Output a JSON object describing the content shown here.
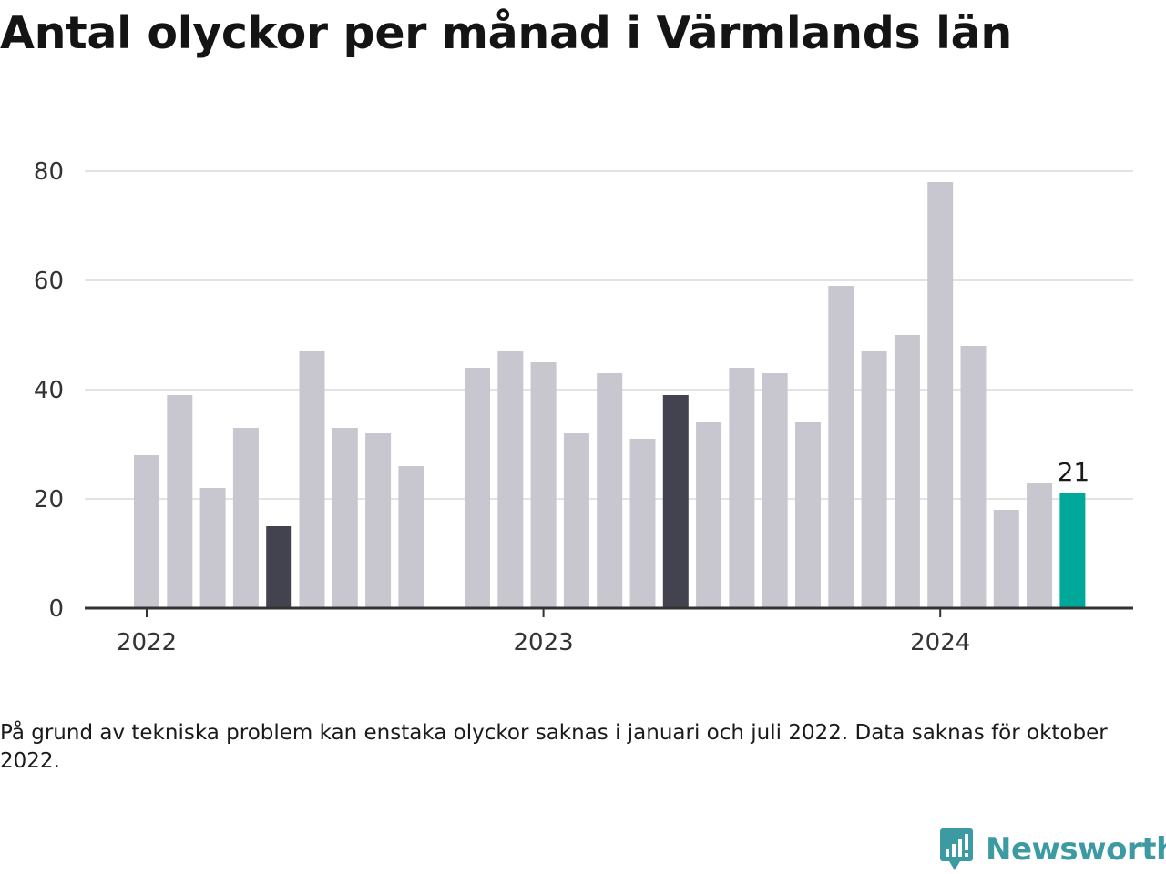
{
  "title": "Antal olyckor per månad i Värmlands län",
  "note": "På grund av tekniska problem kan enstaka olyckor saknas i januari och juli 2022. Data saknas för oktober 2022.",
  "brand": {
    "name": "Newsworthy",
    "icon": "newsworthy-logo-icon",
    "color": "#3c9aa3"
  },
  "colors": {
    "bar": "#c8c7cf",
    "highlight": "#43424f",
    "latest": "#00a89a",
    "grid": "#e3e3e3",
    "axis": "#333333"
  },
  "chart_data": {
    "type": "bar",
    "x": [
      "2022-01",
      "2022-02",
      "2022-03",
      "2022-04",
      "2022-05",
      "2022-06",
      "2022-07",
      "2022-08",
      "2022-09",
      "2022-10",
      "2022-11",
      "2022-12",
      "2023-01",
      "2023-02",
      "2023-03",
      "2023-04",
      "2023-05",
      "2023-06",
      "2023-07",
      "2023-08",
      "2023-09",
      "2023-10",
      "2023-11",
      "2023-12",
      "2024-01",
      "2024-02",
      "2024-03",
      "2024-04",
      "2024-05"
    ],
    "values": [
      28,
      39,
      22,
      33,
      15,
      47,
      33,
      32,
      26,
      null,
      44,
      47,
      45,
      32,
      43,
      31,
      39,
      34,
      44,
      43,
      34,
      59,
      47,
      50,
      78,
      48,
      18,
      23,
      21
    ],
    "highlighted": [
      "2022-05",
      "2023-05"
    ],
    "latest": "2024-05",
    "latest_label": "21",
    "x_tick_labels": [
      {
        "x": "2022-01",
        "label": "2022"
      },
      {
        "x": "2023-01",
        "label": "2023"
      },
      {
        "x": "2024-01",
        "label": "2024"
      }
    ],
    "y_ticks": [
      0,
      20,
      40,
      60,
      80
    ],
    "ylim": [
      0,
      80
    ],
    "grid": true,
    "title": "Antal olyckor per månad i Värmlands län",
    "xlabel": "",
    "ylabel": ""
  }
}
